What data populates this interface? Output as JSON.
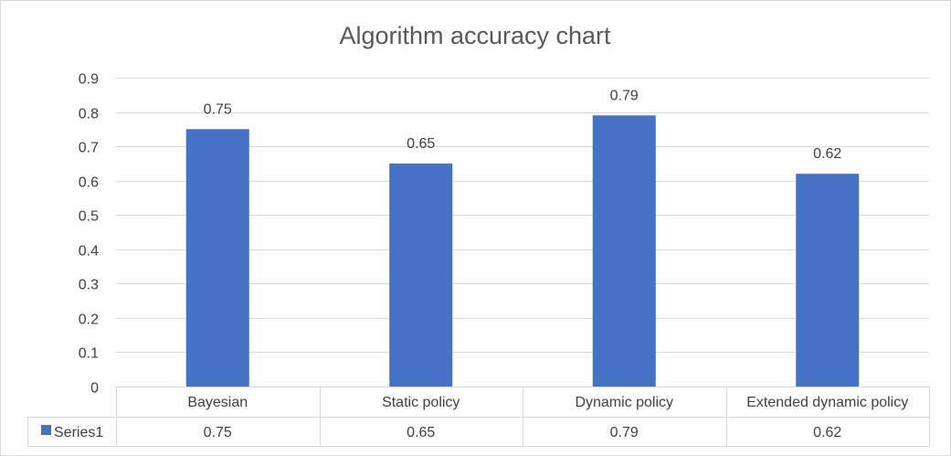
{
  "chart_data": {
    "type": "bar",
    "title": "Algorithm accuracy chart",
    "categories": [
      "Bayesian",
      "Static policy",
      "Dynamic policy",
      "Extended dynamic policy"
    ],
    "series": [
      {
        "name": "Series1",
        "values": [
          0.75,
          0.65,
          0.79,
          0.62
        ],
        "color": "#4472c4"
      }
    ],
    "y_ticks": [
      "0",
      "0.1",
      "0.2",
      "0.3",
      "0.4",
      "0.5",
      "0.6",
      "0.7",
      "0.8",
      "0.9"
    ],
    "ylim": [
      0,
      0.9
    ],
    "data_labels": [
      "0.75",
      "0.65",
      "0.79",
      "0.62"
    ],
    "data_table": {
      "legend_label": "Series1",
      "values": [
        "0.75",
        "0.65",
        "0.79",
        "0.62"
      ]
    },
    "grid": true,
    "legend": "data-table"
  }
}
